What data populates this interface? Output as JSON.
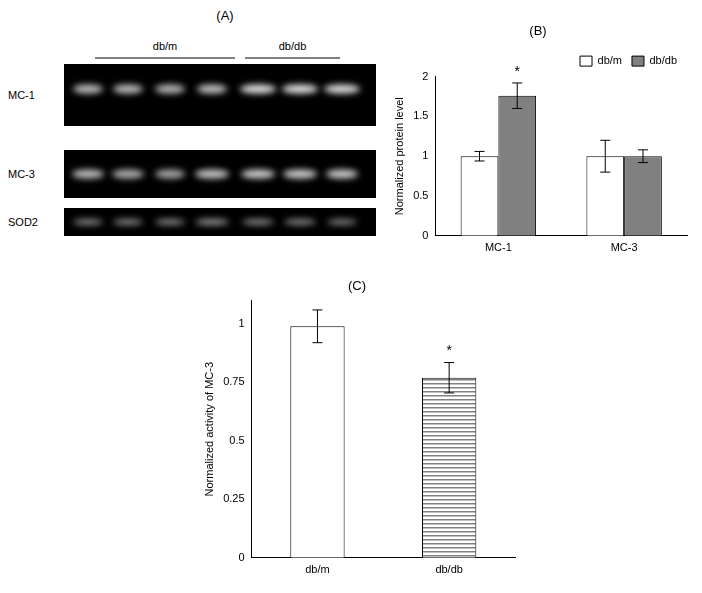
{
  "blot": {
    "title": "(A)",
    "groups": [
      "db/m",
      "db/db"
    ],
    "rows": [
      "MC-1",
      "MC-3",
      "SOD2"
    ]
  },
  "chart_data": [
    {
      "type": "bar",
      "title": "(B)",
      "y_label": "Normalized protein level",
      "categories": [
        "MC-1",
        "MC-3"
      ],
      "series": [
        {
          "name": "db/m",
          "color": "#ffffff",
          "values": [
            1.0,
            1.0
          ],
          "errors": [
            0.06,
            0.2
          ]
        },
        {
          "name": "db/db",
          "color": "#808080",
          "values": [
            1.76,
            1.0
          ],
          "errors": [
            0.16,
            0.08
          ]
        }
      ],
      "ylim": [
        0,
        2
      ],
      "yticks": [
        0,
        0.5,
        1,
        1.5,
        2
      ],
      "grid": false,
      "legend": "upper right",
      "annotations": [
        {
          "text": "*",
          "category": "MC-1",
          "series": "db/db"
        }
      ]
    },
    {
      "type": "bar",
      "title": "(C)",
      "y_label": "Normalized activity of MC-3",
      "categories": [
        "db/m",
        "db/db"
      ],
      "values": [
        0.99,
        0.77
      ],
      "errors": [
        0.07,
        0.065
      ],
      "colors": [
        "#ffffff",
        "#808080"
      ],
      "ylim": [
        0,
        1.1
      ],
      "yticks": [
        0,
        0.25,
        0.5,
        0.75,
        1
      ],
      "grid": false,
      "annotations": [
        {
          "text": "*",
          "category": "db/db"
        }
      ]
    }
  ]
}
